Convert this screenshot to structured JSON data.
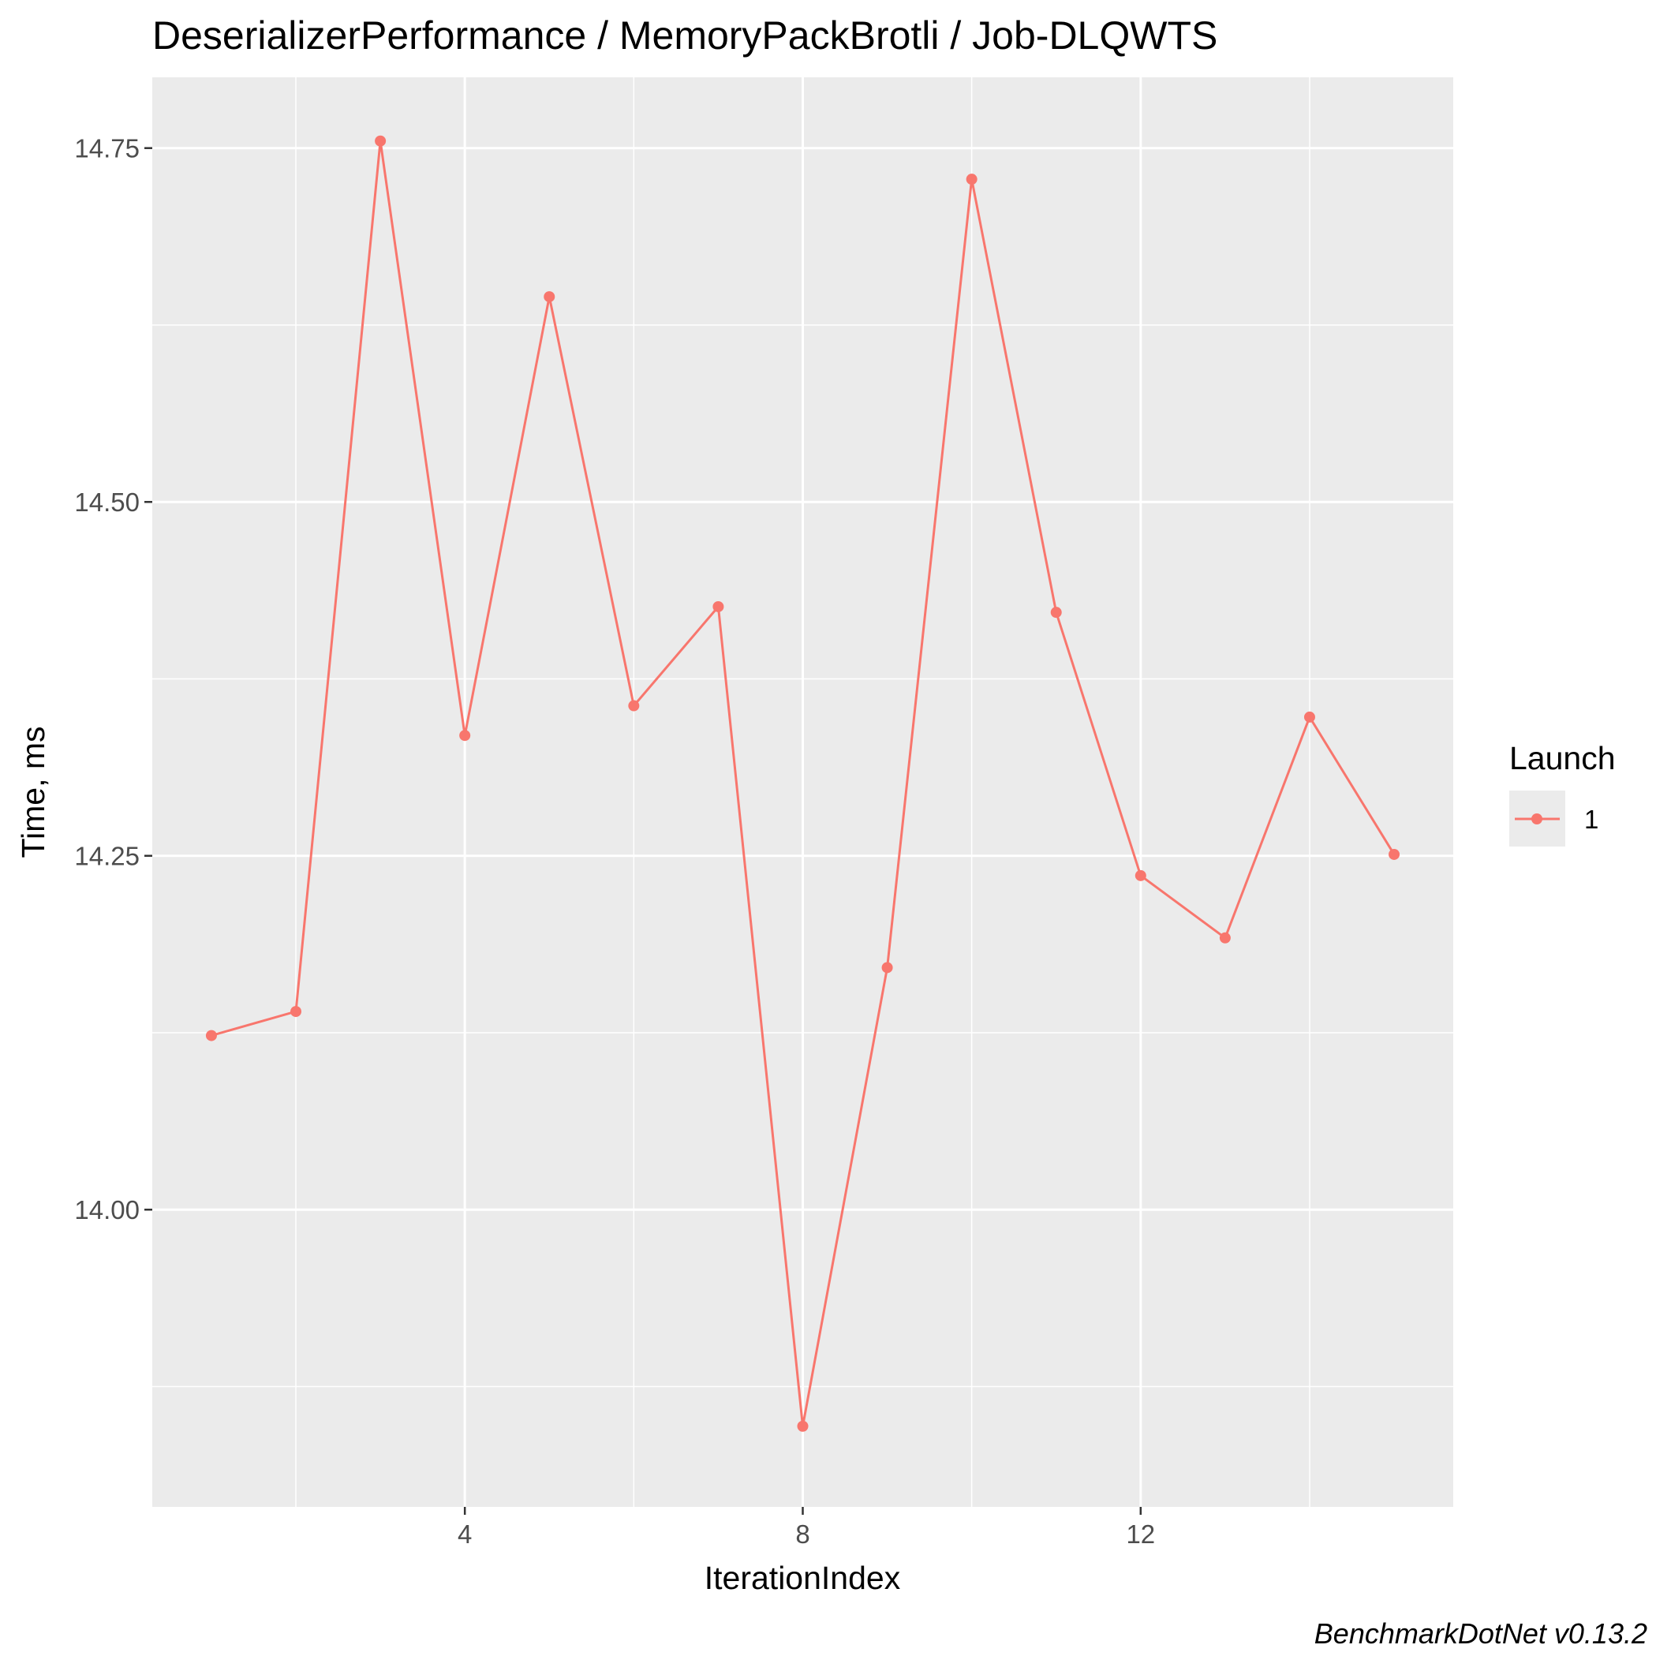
{
  "chart_data": {
    "type": "line",
    "title": "DeserializerPerformance / MemoryPackBrotli / Job-DLQWTS",
    "xlabel": "IterationIndex",
    "ylabel": "Time, ms",
    "x_ticks": [
      "4",
      "8",
      "12"
    ],
    "y_ticks": [
      "14.00",
      "14.25",
      "14.50",
      "14.75"
    ],
    "xlim": [
      0.3,
      15.7
    ],
    "ylim": [
      13.79,
      14.8
    ],
    "grid": true,
    "legend": {
      "title": "Launch",
      "position": "right"
    },
    "series": [
      {
        "name": "1",
        "color": "#F8766D",
        "x": [
          1,
          2,
          3,
          4,
          5,
          6,
          7,
          8,
          9,
          10,
          11,
          12,
          13,
          14,
          15
        ],
        "values": [
          14.123,
          14.14,
          14.755,
          14.335,
          14.645,
          14.356,
          14.426,
          13.847,
          14.171,
          14.728,
          14.422,
          14.236,
          14.192,
          14.348,
          14.251
        ]
      }
    ]
  },
  "caption": "BenchmarkDotNet v0.13.2"
}
